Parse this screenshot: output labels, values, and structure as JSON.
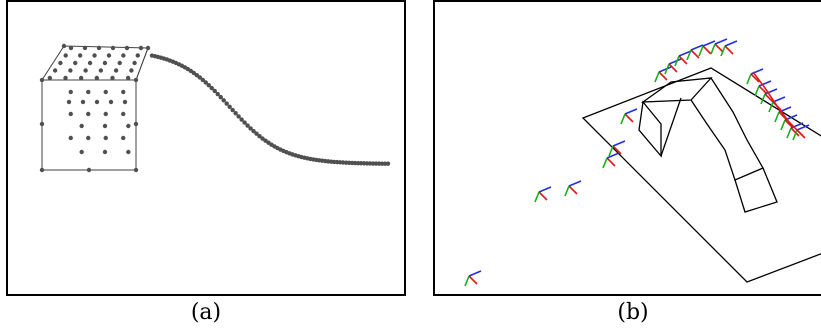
{
  "panels": [
    {
      "caption": "(a)"
    },
    {
      "caption": "(b)"
    }
  ],
  "colors": {
    "frame": "#000000",
    "points": "#505050",
    "cube_edges": "#404040",
    "axis_x": "#e01818",
    "axis_y": "#18b018",
    "axis_z": "#2030e0"
  }
}
